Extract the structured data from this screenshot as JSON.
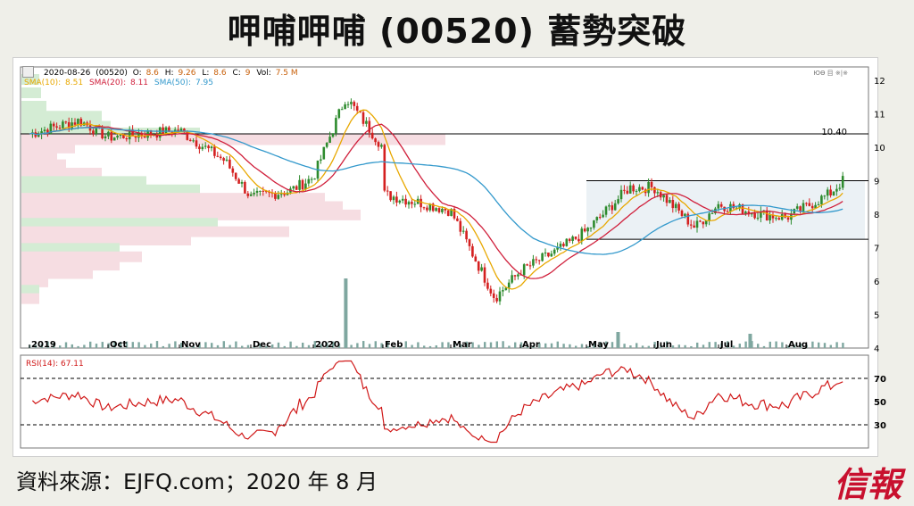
{
  "title": "呷哺呷哺 (00520) 蓄勢突破",
  "header": {
    "date": "2020-08-26",
    "code": "(00520)",
    "o_label": "O:",
    "o_value": "8.6",
    "h_label": "H:",
    "h_value": "9.26",
    "l_label": "L:",
    "l_value": "8.6",
    "c_label": "C:",
    "c_value": "9",
    "vol_label": "Vol:",
    "vol_value": "7.5 M",
    "sma10_label": "SMA(10):",
    "sma10_value": "8.51",
    "sma20_label": "SMA(20):",
    "sma20_value": "8.11",
    "sma50_label": "SMA(50):",
    "sma50_value": "7.95",
    "corner_text": "ЮӨ 目 ※|※"
  },
  "level_label": "10.40",
  "rsi_label": "RSI(14): 67.11",
  "footer": "資料來源：EJFQ.com；2020 年 8 月",
  "logo": "信報",
  "colors": {
    "up": "#2e8b2e",
    "down": "#d42020",
    "sma10": "#e8a800",
    "sma20": "#d0203c",
    "sma50": "#3399cc",
    "rsi": "#d01818",
    "vp_green": "#d4ecd4",
    "vp_pink": "#f6dde2"
  },
  "chart_data": [
    {
      "type": "candlestick",
      "title": "",
      "x_labels": [
        "2019",
        "Oct",
        "Nov",
        "Dec",
        "2020",
        "Feb",
        "Mar",
        "Apr",
        "May",
        "Jun",
        "Jul",
        "Aug"
      ],
      "y_ticks": [
        4,
        5,
        6,
        7,
        8,
        9,
        10,
        11,
        12
      ],
      "ylim": [
        4,
        12.4
      ],
      "horizontal_lines": [
        10.4,
        9.0,
        7.25
      ],
      "consolidation_box": {
        "start_month": "May",
        "top": 9.0,
        "bottom": 7.25
      },
      "approx_close_path": [
        {
          "x": "2019-09",
          "close": 10.4
        },
        {
          "x": "2019-09-20",
          "close": 10.8
        },
        {
          "x": "2019-10",
          "close": 10.3
        },
        {
          "x": "2019-11",
          "close": 10.5
        },
        {
          "x": "2019-11-20",
          "close": 9.6
        },
        {
          "x": "2019-12",
          "close": 8.5
        },
        {
          "x": "2019-12-20",
          "close": 8.7
        },
        {
          "x": "2020-01",
          "close": 9.1
        },
        {
          "x": "2020-01-15",
          "close": 11.5
        },
        {
          "x": "2020-01-31",
          "close": 10.0
        },
        {
          "x": "2020-02",
          "close": 8.6
        },
        {
          "x": "2020-02-20",
          "close": 8.3
        },
        {
          "x": "2020-03",
          "close": 8.1
        },
        {
          "x": "2020-03-20",
          "close": 5.5
        },
        {
          "x": "2020-04",
          "close": 6.3
        },
        {
          "x": "2020-04-20",
          "close": 7.0
        },
        {
          "x": "2020-05",
          "close": 7.5
        },
        {
          "x": "2020-05-20",
          "close": 8.8
        },
        {
          "x": "2020-06",
          "close": 8.8
        },
        {
          "x": "2020-06-20",
          "close": 7.6
        },
        {
          "x": "2020-07",
          "close": 8.3
        },
        {
          "x": "2020-07-20",
          "close": 8.0
        },
        {
          "x": "2020-08",
          "close": 7.9
        },
        {
          "x": "2020-08-20",
          "close": 8.6
        },
        {
          "x": "2020-08-26",
          "close": 9.0
        }
      ],
      "volume_spike_months": [
        "2020-01",
        "2020-05",
        "2020-07"
      ]
    },
    {
      "type": "line",
      "series": [
        {
          "name": "RSI(14)",
          "last": 67.11
        }
      ],
      "y_ticks": [
        30,
        50,
        70
      ],
      "ylim": [
        10,
        90
      ],
      "reference_lines": [
        30,
        70
      ]
    }
  ]
}
